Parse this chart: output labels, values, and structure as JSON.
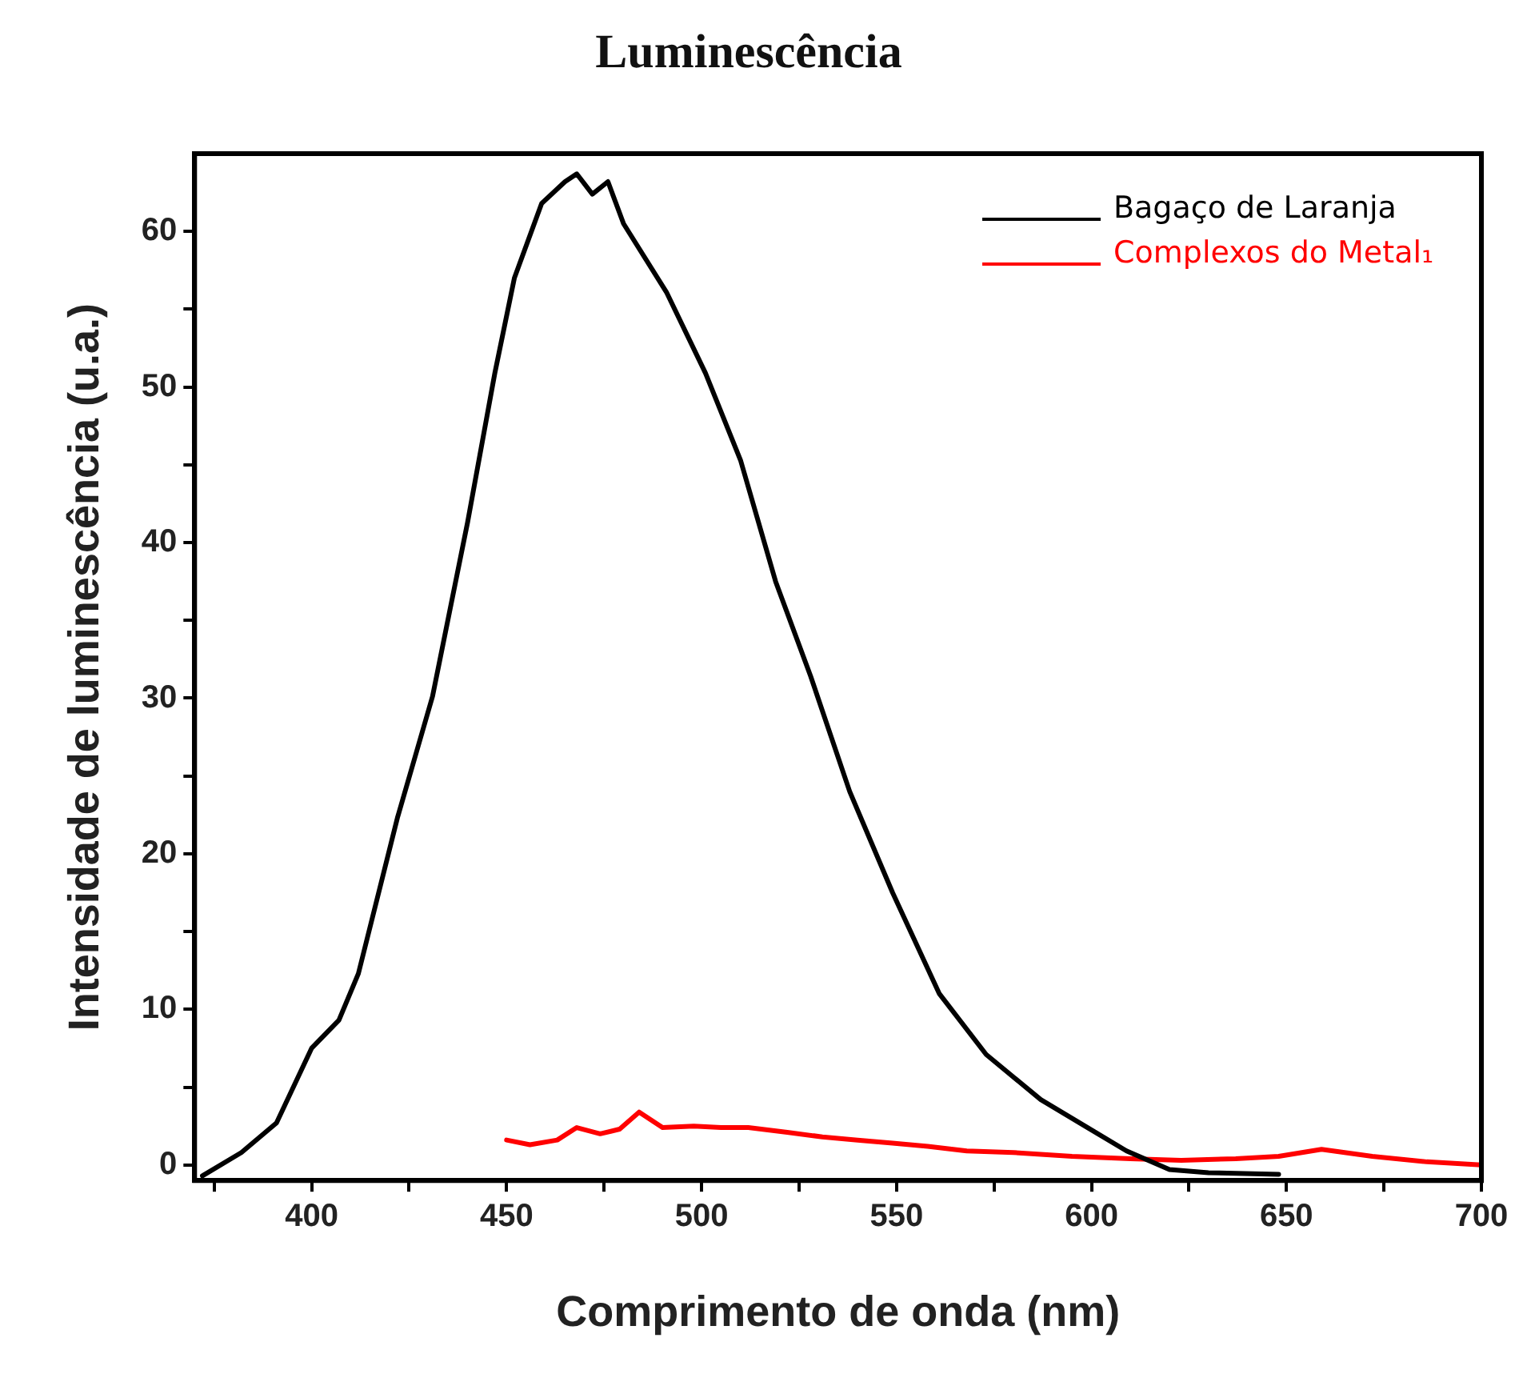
{
  "chart_data": {
    "type": "line",
    "title": "Luminescência",
    "xlabel": "Comprimento de onda (nm)",
    "ylabel": "Intensidade de luminescência (u.a.)",
    "xlim": [
      370,
      700
    ],
    "ylim": [
      -1,
      65
    ],
    "xticks": [
      {
        "value": 375,
        "label": null
      },
      400,
      {
        "value": 425,
        "label": null
      },
      450,
      {
        "value": 475,
        "label": null
      },
      500,
      {
        "value": 525,
        "label": null
      },
      550,
      {
        "value": 575,
        "label": null
      },
      600,
      {
        "value": 625,
        "label": null
      },
      650,
      {
        "value": 675,
        "label": null
      },
      700
    ],
    "yticks": [
      0,
      {
        "value": 5,
        "label": null
      },
      10,
      {
        "value": 15,
        "label": null
      },
      20,
      {
        "value": 25,
        "label": null
      },
      30,
      {
        "value": 35,
        "label": null
      },
      40,
      {
        "value": 45,
        "label": null
      },
      50,
      {
        "value": 55,
        "label": null
      },
      60
    ],
    "legend": "top right",
    "marker": "none",
    "line_style": "solid",
    "series": [
      {
        "name": "Bagaço de Laranja",
        "color": "#000000",
        "x": [
          372,
          382,
          391,
          400,
          407,
          412,
          422,
          431,
          440,
          447,
          452,
          459,
          465,
          468,
          472,
          476,
          480,
          491,
          501,
          510,
          519,
          528,
          538,
          549,
          561,
          573,
          587,
          599,
          609,
          620,
          630,
          648
        ],
        "values": [
          -0.7,
          0.8,
          2.7,
          7.5,
          9.3,
          12.3,
          22.3,
          30.1,
          41.3,
          50.9,
          57,
          61.8,
          63.2,
          63.7,
          62.4,
          63.2,
          60.5,
          56.1,
          50.9,
          45.3,
          37.5,
          31.4,
          24,
          17.5,
          11,
          7.1,
          4.2,
          2.4,
          0.9,
          -0.3,
          -0.5,
          -0.6
        ]
      },
      {
        "name": "Complexos do Metal₁",
        "color": "#ff0000",
        "x": [
          450,
          456,
          463,
          468,
          474,
          479,
          484,
          490,
          498,
          505,
          512,
          522,
          531,
          540,
          549,
          558,
          568,
          580,
          595,
          610,
          623,
          637,
          648,
          659,
          672,
          686,
          700
        ],
        "values": [
          1.6,
          1.3,
          1.6,
          2.4,
          2.0,
          2.3,
          3.4,
          2.4,
          2.5,
          2.4,
          2.4,
          2.1,
          1.8,
          1.6,
          1.4,
          1.2,
          0.9,
          0.8,
          0.55,
          0.4,
          0.3,
          0.4,
          0.55,
          1.0,
          0.55,
          0.2,
          0.0
        ]
      }
    ]
  }
}
